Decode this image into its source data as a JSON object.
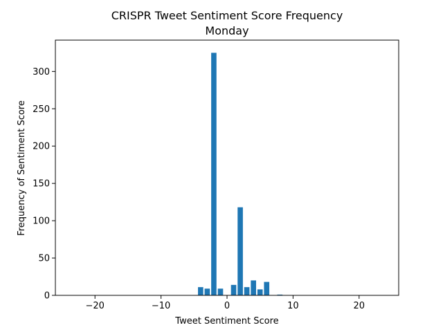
{
  "chart_data": {
    "type": "bar",
    "title": "CRISPR Tweet Sentiment Score Frequency",
    "subtitle": "Monday",
    "xlabel": "Tweet Sentiment Score",
    "ylabel": "Frequency of Sentiment Score",
    "xlim": [
      -26,
      26
    ],
    "ylim": [
      0,
      342
    ],
    "xticks": [
      -20,
      -10,
      0,
      10,
      20
    ],
    "yticks": [
      0,
      50,
      100,
      150,
      200,
      250,
      300
    ],
    "xtick_labels": [
      "−20",
      "−10",
      "0",
      "10",
      "20"
    ],
    "ytick_labels": [
      "0",
      "50",
      "100",
      "150",
      "200",
      "250",
      "300"
    ],
    "bar_color": "#1f77b4",
    "grid": false,
    "x": [
      -4,
      -3,
      -2,
      -1,
      1,
      2,
      3,
      4,
      5,
      6,
      8
    ],
    "values": [
      11,
      9,
      325,
      9,
      14,
      118,
      11,
      20,
      8,
      18,
      1
    ]
  }
}
